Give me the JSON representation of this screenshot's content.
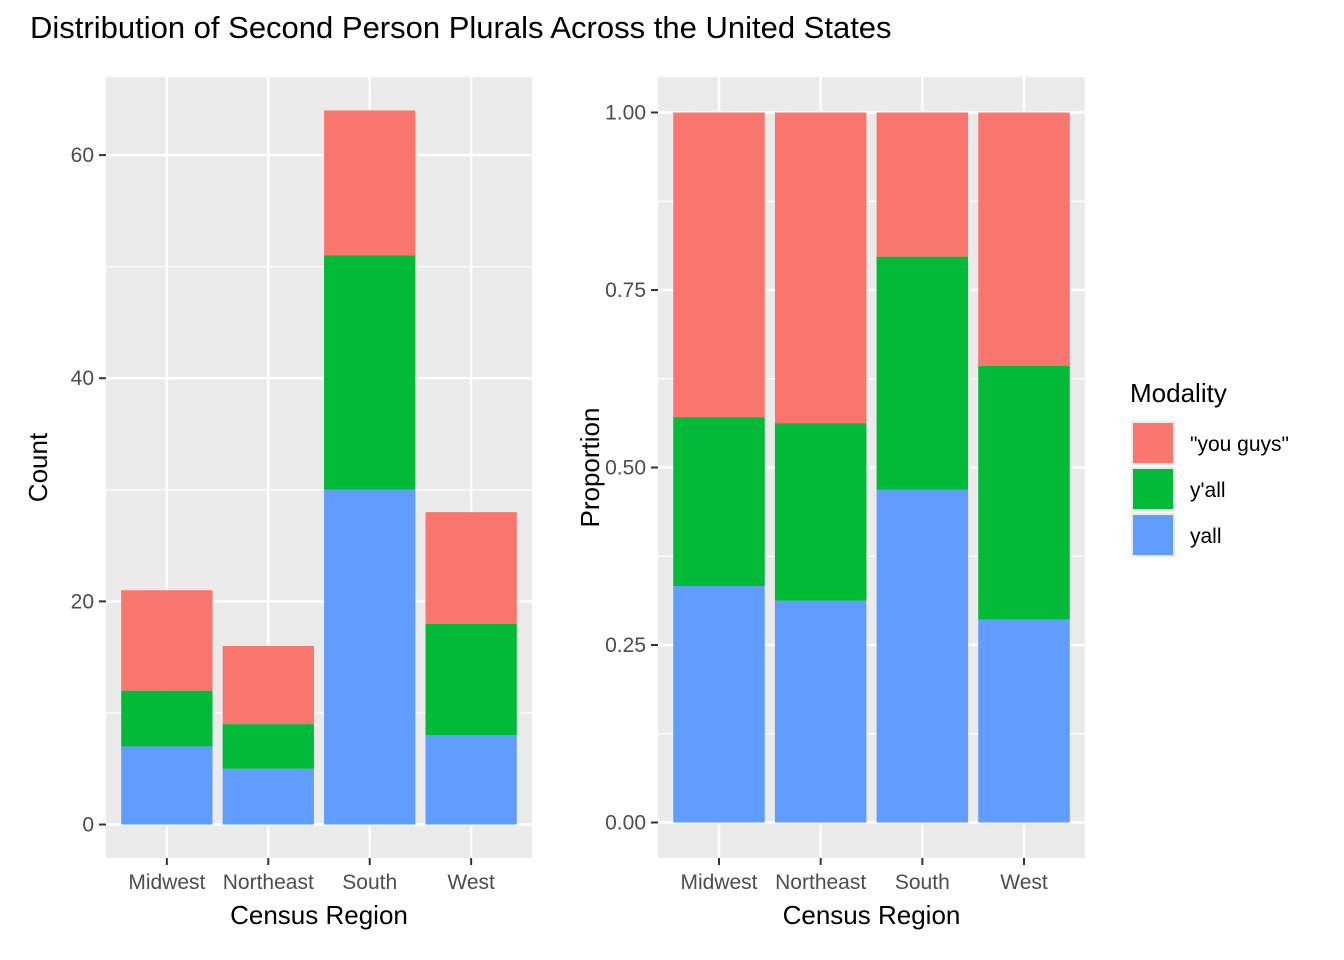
{
  "title": "Distribution of Second Person Plurals Across the United States",
  "chart_data": [
    {
      "type": "bar",
      "stacked": true,
      "categories": [
        "Midwest",
        "Northeast",
        "South",
        "West"
      ],
      "series": [
        {
          "name": "yall",
          "color": "#619CFF",
          "values": [
            7,
            5,
            30,
            8
          ]
        },
        {
          "name": "y'all",
          "color": "#00BA38",
          "values": [
            5,
            4,
            21,
            10
          ]
        },
        {
          "name": "\"you guys\"",
          "color": "#F8766D",
          "values": [
            9,
            7,
            13,
            10
          ]
        }
      ],
      "xlabel": "Census Region",
      "ylabel": "Count",
      "ylim": [
        -3,
        67
      ],
      "yticks": [
        0,
        20,
        40,
        60
      ],
      "ytick_labels": [
        "0",
        "20",
        "40",
        "60"
      ],
      "grid": true
    },
    {
      "type": "bar",
      "stacked": true,
      "categories": [
        "Midwest",
        "Northeast",
        "South",
        "West"
      ],
      "series": [
        {
          "name": "yall",
          "color": "#619CFF",
          "values": [
            0.333,
            0.3125,
            0.469,
            0.286
          ]
        },
        {
          "name": "y'all",
          "color": "#00BA38",
          "values": [
            0.238,
            0.25,
            0.328,
            0.357
          ]
        },
        {
          "name": "\"you guys\"",
          "color": "#F8766D",
          "values": [
            0.429,
            0.4375,
            0.203,
            0.357
          ]
        }
      ],
      "xlabel": "Census Region",
      "ylabel": "Proportion",
      "ylim": [
        -0.05,
        1.05
      ],
      "yticks": [
        0,
        0.25,
        0.5,
        0.75,
        1
      ],
      "ytick_labels": [
        "0.00",
        "0.25",
        "0.50",
        "0.75",
        "1.00"
      ],
      "grid": true
    }
  ],
  "legend": {
    "title": "Modality",
    "placement": "right",
    "entries": [
      {
        "label": "\"you guys\"",
        "color": "#F8766D"
      },
      {
        "label": "y'all",
        "color": "#00BA38"
      },
      {
        "label": "yall",
        "color": "#619CFF"
      }
    ]
  }
}
